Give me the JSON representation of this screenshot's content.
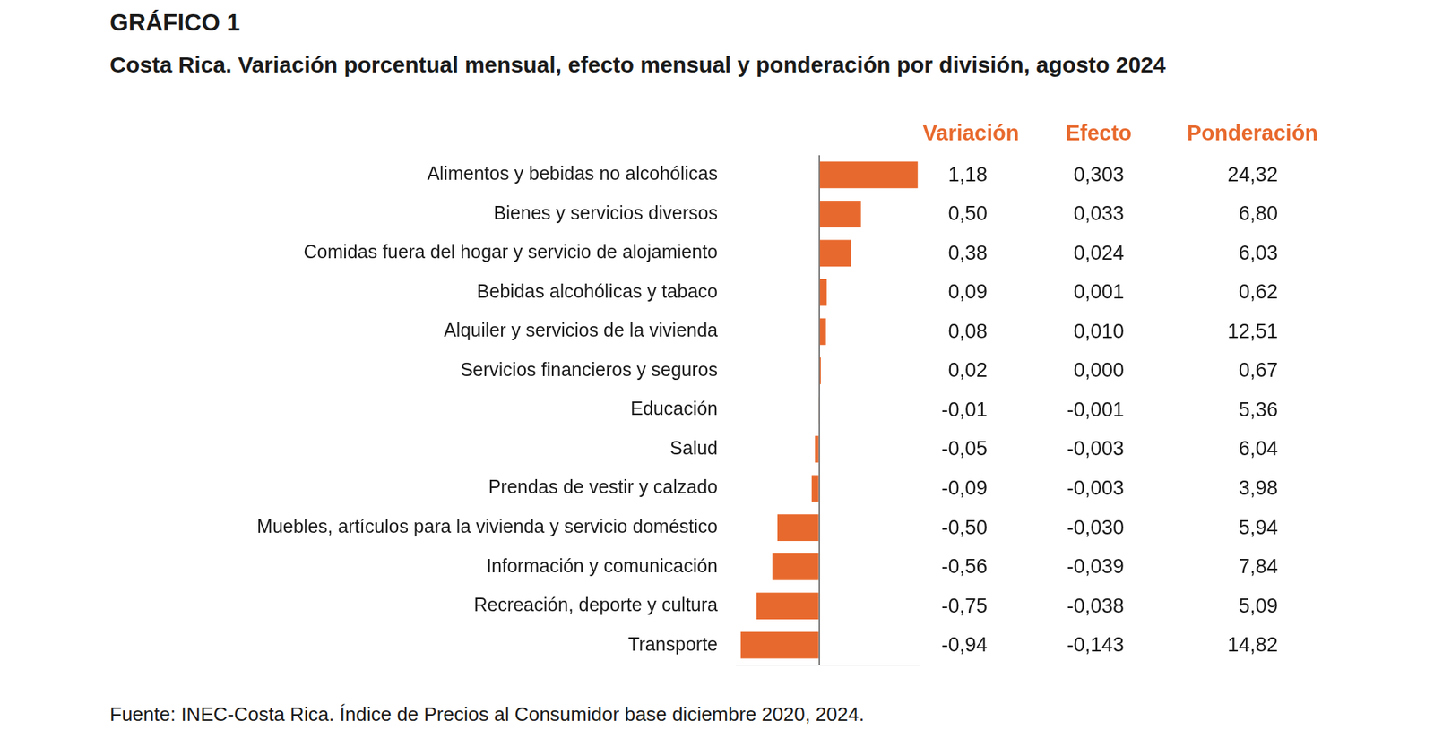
{
  "chart_data": {
    "type": "bar",
    "title": "GRÁFICO 1",
    "subtitle": "Costa Rica. Variación porcentual mensual, efecto mensual y ponderación por división, agosto 2024",
    "source": "Fuente: INEC-Costa Rica. Índice de Precios al Consumidor base diciembre 2020, 2024.",
    "orientation": "horizontal",
    "data_labels": true,
    "tick_labels": "y",
    "categories": [
      "Alimentos y bebidas no alcohólicas",
      "Bienes y servicios diversos",
      "Comidas fuera del hogar y servicio de alojamiento",
      "Bebidas alcohólicas y tabaco",
      "Alquiler y servicios de la vivienda",
      "Servicios financieros y seguros",
      "Educación",
      "Salud",
      "Prendas de vestir y calzado",
      "Muebles, artículos para la vivienda y servicio doméstico",
      "Información y comunicación",
      "Recreación, deporte y cultura",
      "Transporte"
    ],
    "series": [
      {
        "name": "Variación",
        "color": "#e8692d",
        "values": [
          1.18,
          0.5,
          0.38,
          0.09,
          0.08,
          0.02,
          -0.01,
          -0.05,
          -0.09,
          -0.5,
          -0.56,
          -0.75,
          -0.94
        ],
        "value_labels": [
          "1,18",
          "0,50",
          "0,38",
          "0,09",
          "0,08",
          "0,02",
          "-0,01",
          "-0,05",
          "-0,09",
          "-0,50",
          "-0,56",
          "-0,75",
          "-0,94"
        ]
      }
    ],
    "columns": [
      {
        "name": "Efecto",
        "values": [
          0.303,
          0.033,
          0.024,
          0.001,
          0.01,
          0.0,
          -0.001,
          -0.003,
          -0.003,
          -0.03,
          -0.039,
          -0.038,
          -0.143
        ],
        "value_labels": [
          "0,303",
          "0,033",
          "0,024",
          "0,001",
          "0,010",
          "0,000",
          "-0,001",
          "-0,003",
          "-0,003",
          "-0,030",
          "-0,039",
          "-0,038",
          "-0,143"
        ]
      },
      {
        "name": "Ponderación",
        "values": [
          24.32,
          6.8,
          6.03,
          0.62,
          12.51,
          0.67,
          5.36,
          6.04,
          3.98,
          5.94,
          7.84,
          5.09,
          14.82
        ],
        "value_labels": [
          "24,32",
          "6,80",
          "6,03",
          "0,62",
          "12,51",
          "0,67",
          "5,36",
          "6,04",
          "3,98",
          "5,94",
          "7,84",
          "5,09",
          "14,82"
        ]
      }
    ],
    "xlim": [
      -1,
      1.2
    ],
    "xticks": [
      0
    ]
  }
}
